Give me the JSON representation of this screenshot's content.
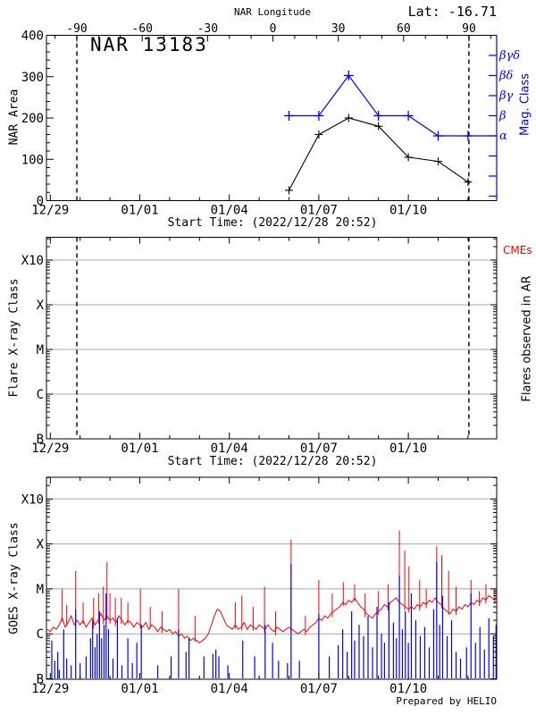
{
  "header": {
    "lat": "Lat: -16.71",
    "region_title": "NAR 13183"
  },
  "footer": {
    "credit": "Prepared by HELIO"
  },
  "colors": {
    "blue": "#0000ff",
    "red": "#ff0000",
    "grid_gray": "#a8a8a8",
    "black": "#000000"
  },
  "chart_data": [
    {
      "type": "line",
      "title": "NAR 13183",
      "ylabel": "NAR Area",
      "ylim": [
        0,
        400
      ],
      "yticks": [
        0,
        100,
        200,
        300,
        400
      ],
      "y_minor_step": 20,
      "xlabel": "Start Time: (2022/12/28 20:52)",
      "x_ticks": {
        "days": [
          0,
          3,
          6,
          9,
          12
        ],
        "labels": [
          "12/29",
          "01/01",
          "01/04",
          "01/07",
          "01/10"
        ],
        "minor_step_days": 1
      },
      "top_axis": {
        "label": "NAR Longitude",
        "ticks": [
          -90,
          -60,
          -30,
          0,
          30,
          60,
          90
        ],
        "minor_step": 10
      },
      "right_axis": {
        "label": "Mag. Class",
        "tick_labels": [
          "βγδ",
          "βδ",
          "βγ",
          "β",
          "α",
          "",
          "",
          ""
        ]
      },
      "dashed_lines_day": [
        0.89,
        14.03
      ],
      "series": [
        {
          "name": "NAR Area",
          "color": "#000000",
          "marker": "+",
          "x_day": [
            8,
            9,
            10,
            11,
            12,
            13,
            14
          ],
          "dates": [
            "01/06",
            "01/07",
            "01/08",
            "01/09",
            "01/10",
            "01/11",
            "01/12"
          ],
          "values": [
            25,
            160,
            200,
            180,
            105,
            95,
            45
          ]
        },
        {
          "name": "Mag Class",
          "color": "#0000ff",
          "marker": "+",
          "x_day": [
            8,
            9,
            10,
            11,
            12,
            13,
            14
          ],
          "dates": [
            "01/06",
            "01/07",
            "01/08",
            "01/09",
            "01/10",
            "01/11",
            "01/12"
          ],
          "classes": [
            "β",
            "β",
            "βδ",
            "β",
            "β",
            "α",
            "α"
          ],
          "extends_to_right_edge": true
        }
      ]
    },
    {
      "type": "line",
      "ylabel": "Flare X-ray Class",
      "yticks": [
        "X10",
        "X",
        "M",
        "C",
        "B"
      ],
      "grid_levels": [
        "X10",
        "X",
        "M",
        "C"
      ],
      "xlabel": "Start Time: (2022/12/28 20:52)",
      "x_ticks": {
        "days": [
          0,
          3,
          6,
          9,
          12
        ],
        "labels": [
          "12/29",
          "01/01",
          "01/04",
          "01/07",
          "01/10"
        ],
        "minor_step_days": 1
      },
      "dashed_lines_day": [
        0.89,
        14.03
      ],
      "right_labels": {
        "cmes": "CMEs",
        "flares": "Flares observed in AR"
      },
      "series": []
    },
    {
      "type": "line",
      "ylabel": "GOES X-ray Class",
      "yticks": [
        "X10",
        "X",
        "M",
        "C",
        "B"
      ],
      "grid_levels": [
        "X10",
        "X",
        "M",
        "C"
      ],
      "x_ticks": {
        "days": [
          0,
          3,
          6,
          9,
          12
        ],
        "labels": [
          "12/29",
          "01/01",
          "01/04",
          "01/07",
          "01/10"
        ],
        "minor_step_days": 1
      },
      "level_scale": {
        "B": 0,
        "C": 1,
        "M": 2,
        "X": 3,
        "X10": 4
      },
      "red_series": {
        "name": "GOES X-ray flux (long)",
        "color": "#ff0000",
        "start_day": -0.1,
        "dx_day": 0.1,
        "levels": [
          1.1,
          1.05,
          1.15,
          1.1,
          1.2,
          1.35,
          1.15,
          1.25,
          1.4,
          1.2,
          1.3,
          1.2,
          1.3,
          1.15,
          1.25,
          1.35,
          1.2,
          1.3,
          1.45,
          1.3,
          1.4,
          1.3,
          1.35,
          1.25,
          1.4,
          1.3,
          1.2,
          1.3,
          1.25,
          1.15,
          1.25,
          1.2,
          1.15,
          1.25,
          1.1,
          1.2,
          1.15,
          1.05,
          1.15,
          1.1,
          1.05,
          1.1,
          1.0,
          1.05,
          0.95,
          1.0,
          0.9,
          0.95,
          0.85,
          0.9,
          0.85,
          0.8,
          0.85,
          0.9,
          1.0,
          1.2,
          1.4,
          1.55,
          1.5,
          1.35,
          1.2,
          1.15,
          1.1,
          1.2,
          1.1,
          1.15,
          1.25,
          1.1,
          1.2,
          1.15,
          1.1,
          1.2,
          1.15,
          1.1,
          1.2,
          1.1,
          1.05,
          1.15,
          1.1,
          1.05,
          1.1,
          1.15,
          1.1,
          1.05,
          1.0,
          1.05,
          1.1,
          1.05,
          1.15,
          1.2,
          1.25,
          1.35,
          1.3,
          1.4,
          1.35,
          1.45,
          1.5,
          1.55,
          1.6,
          1.7,
          1.65,
          1.75,
          1.7,
          1.8,
          1.7,
          1.6,
          1.55,
          1.45,
          1.4,
          1.35,
          1.45,
          1.5,
          1.55,
          1.65,
          1.6,
          1.7,
          1.75,
          1.8,
          1.7,
          1.65,
          1.6,
          1.55,
          1.6,
          1.55,
          1.65,
          1.6,
          1.7,
          1.65,
          1.75,
          1.7,
          1.8,
          1.7,
          1.65,
          1.55,
          1.5,
          1.45,
          1.55,
          1.5,
          1.6,
          1.55,
          1.65,
          1.6,
          1.7,
          1.65,
          1.75,
          1.7,
          1.8,
          1.75,
          1.85,
          1.8,
          1.75,
          1.8,
          1.75
        ]
      },
      "red_flare_spikes": [
        [
          0.4,
          2.0
        ],
        [
          0.55,
          1.65
        ],
        [
          0.85,
          2.4
        ],
        [
          1.1,
          1.7
        ],
        [
          1.45,
          1.8
        ],
        [
          1.62,
          1.9
        ],
        [
          1.78,
          2.05
        ],
        [
          1.9,
          2.6
        ],
        [
          2.0,
          1.9
        ],
        [
          2.18,
          1.8
        ],
        [
          2.38,
          1.8
        ],
        [
          2.6,
          1.7
        ],
        [
          3.02,
          2.0
        ],
        [
          3.35,
          1.6
        ],
        [
          3.75,
          1.5
        ],
        [
          4.3,
          2.0
        ],
        [
          4.85,
          1.4
        ],
        [
          6.2,
          1.7
        ],
        [
          6.42,
          1.85
        ],
        [
          6.8,
          1.6
        ],
        [
          7.18,
          2.05
        ],
        [
          7.55,
          1.5
        ],
        [
          8.07,
          3.1
        ],
        [
          8.55,
          1.4
        ],
        [
          9.0,
          2.2
        ],
        [
          9.45,
          1.9
        ],
        [
          9.82,
          2.15
        ],
        [
          10.2,
          2.1
        ],
        [
          10.55,
          1.9
        ],
        [
          11.0,
          1.95
        ],
        [
          11.32,
          2.1
        ],
        [
          11.7,
          3.3
        ],
        [
          11.88,
          2.85
        ],
        [
          12.02,
          2.5
        ],
        [
          12.38,
          2.2
        ],
        [
          12.6,
          2.0
        ],
        [
          12.95,
          2.95
        ],
        [
          13.12,
          2.75
        ],
        [
          13.35,
          2.4
        ],
        [
          13.6,
          2.05
        ],
        [
          14.1,
          2.2
        ],
        [
          14.38,
          1.95
        ],
        [
          14.6,
          2.1
        ],
        [
          14.9,
          2.0
        ]
      ],
      "blue_spikes": [
        [
          0.05,
          0.85
        ],
        [
          0.15,
          0.4
        ],
        [
          0.25,
          0.6
        ],
        [
          0.3,
          0.2
        ],
        [
          0.45,
          1.1
        ],
        [
          0.55,
          0.45
        ],
        [
          0.7,
          0.3
        ],
        [
          0.85,
          1.55
        ],
        [
          1.0,
          0.35
        ],
        [
          1.2,
          0.5
        ],
        [
          1.35,
          0.9
        ],
        [
          1.42,
          1.3
        ],
        [
          1.5,
          0.7
        ],
        [
          1.57,
          1.0
        ],
        [
          1.65,
          1.5
        ],
        [
          1.72,
          0.9
        ],
        [
          1.8,
          1.2
        ],
        [
          1.87,
          1.9
        ],
        [
          1.95,
          1.1
        ],
        [
          2.1,
          0.45
        ],
        [
          2.25,
          1.35
        ],
        [
          2.4,
          0.3
        ],
        [
          2.6,
          0.9
        ],
        [
          2.75,
          0.35
        ],
        [
          2.9,
          0.8
        ],
        [
          3.05,
          1.2
        ],
        [
          3.6,
          0.3
        ],
        [
          4.05,
          0.5
        ],
        [
          4.3,
          1.1
        ],
        [
          4.55,
          0.6
        ],
        [
          4.65,
          0.9
        ],
        [
          5.15,
          0.5
        ],
        [
          5.45,
          0.55
        ],
        [
          5.55,
          0.65
        ],
        [
          5.65,
          0.5
        ],
        [
          5.95,
          0.3
        ],
        [
          6.45,
          0.85
        ],
        [
          6.85,
          0.5
        ],
        [
          7.2,
          1.2
        ],
        [
          7.45,
          0.8
        ],
        [
          7.65,
          0.4
        ],
        [
          7.95,
          0.35
        ],
        [
          8.07,
          2.55
        ],
        [
          8.35,
          0.4
        ],
        [
          9.0,
          1.45
        ],
        [
          9.35,
          0.5
        ],
        [
          9.65,
          0.75
        ],
        [
          9.8,
          1.1
        ],
        [
          9.95,
          0.6
        ],
        [
          10.1,
          1.5
        ],
        [
          10.2,
          0.85
        ],
        [
          10.35,
          1.2
        ],
        [
          10.5,
          0.95
        ],
        [
          10.65,
          1.4
        ],
        [
          10.8,
          0.7
        ],
        [
          10.95,
          1.6
        ],
        [
          11.1,
          1.0
        ],
        [
          11.2,
          0.8
        ],
        [
          11.35,
          1.7
        ],
        [
          11.5,
          1.25
        ],
        [
          11.6,
          0.9
        ],
        [
          11.7,
          2.3
        ],
        [
          11.8,
          1.1
        ],
        [
          11.9,
          1.5
        ],
        [
          12.0,
          0.8
        ],
        [
          12.1,
          1.9
        ],
        [
          12.25,
          1.3
        ],
        [
          12.4,
          0.95
        ],
        [
          12.55,
          1.15
        ],
        [
          12.7,
          0.7
        ],
        [
          12.85,
          1.55
        ],
        [
          12.95,
          2.6
        ],
        [
          13.05,
          1.2
        ],
        [
          13.15,
          1.85
        ],
        [
          13.3,
          0.95
        ],
        [
          13.45,
          1.3
        ],
        [
          13.6,
          0.6
        ],
        [
          13.75,
          0.45
        ],
        [
          13.95,
          0.7
        ],
        [
          14.1,
          1.9
        ],
        [
          14.25,
          0.8
        ],
        [
          14.4,
          1.15
        ],
        [
          14.55,
          0.65
        ],
        [
          14.7,
          1.35
        ],
        [
          14.85,
          0.95
        ],
        [
          14.94,
          1.2
        ]
      ],
      "credit": "Prepared by HELIO"
    }
  ]
}
